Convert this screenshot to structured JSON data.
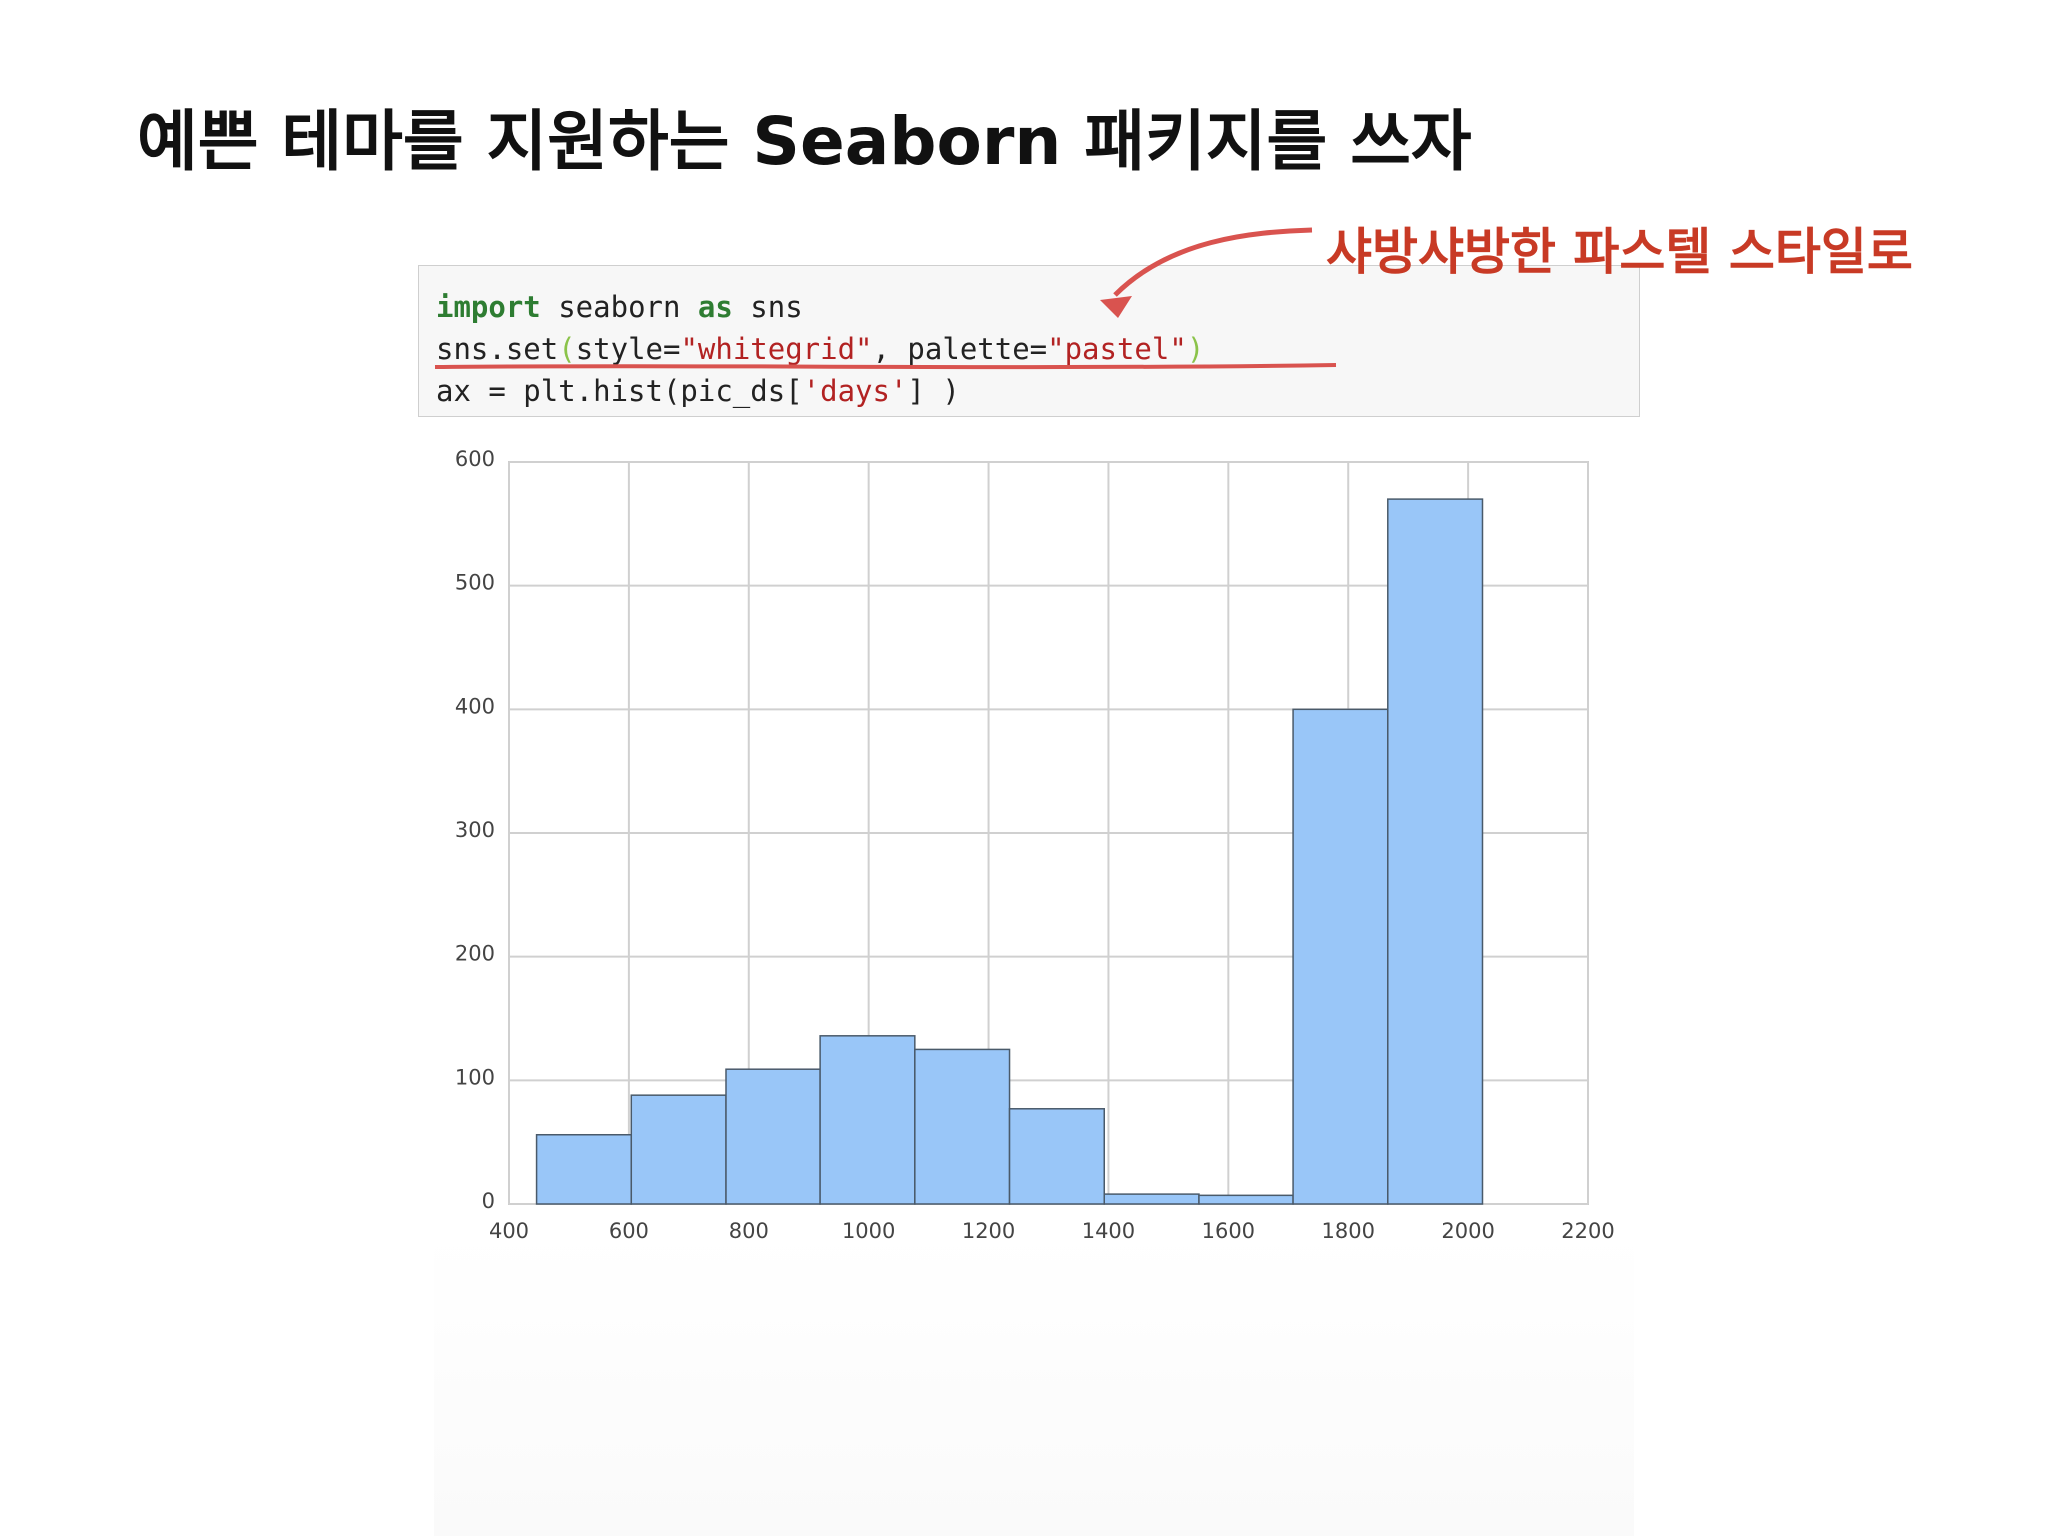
{
  "title": "예쁜 테마를 지원하는 Seaborn 패키지를 쓰자",
  "annotation": "샤방샤방한 파스텔 스타일로",
  "code": {
    "lines": [
      [
        "import",
        " seaborn ",
        "as",
        " sns"
      ],
      [
        "sns.set",
        "(",
        "style=",
        "\"whitegrid\"",
        ", palette=",
        "\"pastel\"",
        ")"
      ],
      [
        "ax = plt.hist(pic_ds[",
        "'days'",
        "] )"
      ]
    ]
  },
  "chart_data": {
    "type": "histogram",
    "bins": [
      446,
      604,
      762,
      919,
      1077,
      1235,
      1393,
      1551,
      1708,
      1866,
      2024
    ],
    "values": [
      56,
      88,
      109,
      136,
      125,
      77,
      8,
      7,
      400,
      570
    ],
    "color": "#99c6f8",
    "xlim": [
      400,
      2200
    ],
    "xticks": [
      400,
      600,
      800,
      1000,
      1200,
      1400,
      1600,
      1800,
      2000,
      2200
    ],
    "ylim": [
      0,
      600
    ],
    "yticks": [
      0,
      100,
      200,
      300,
      400,
      500,
      600
    ],
    "grid": true
  }
}
